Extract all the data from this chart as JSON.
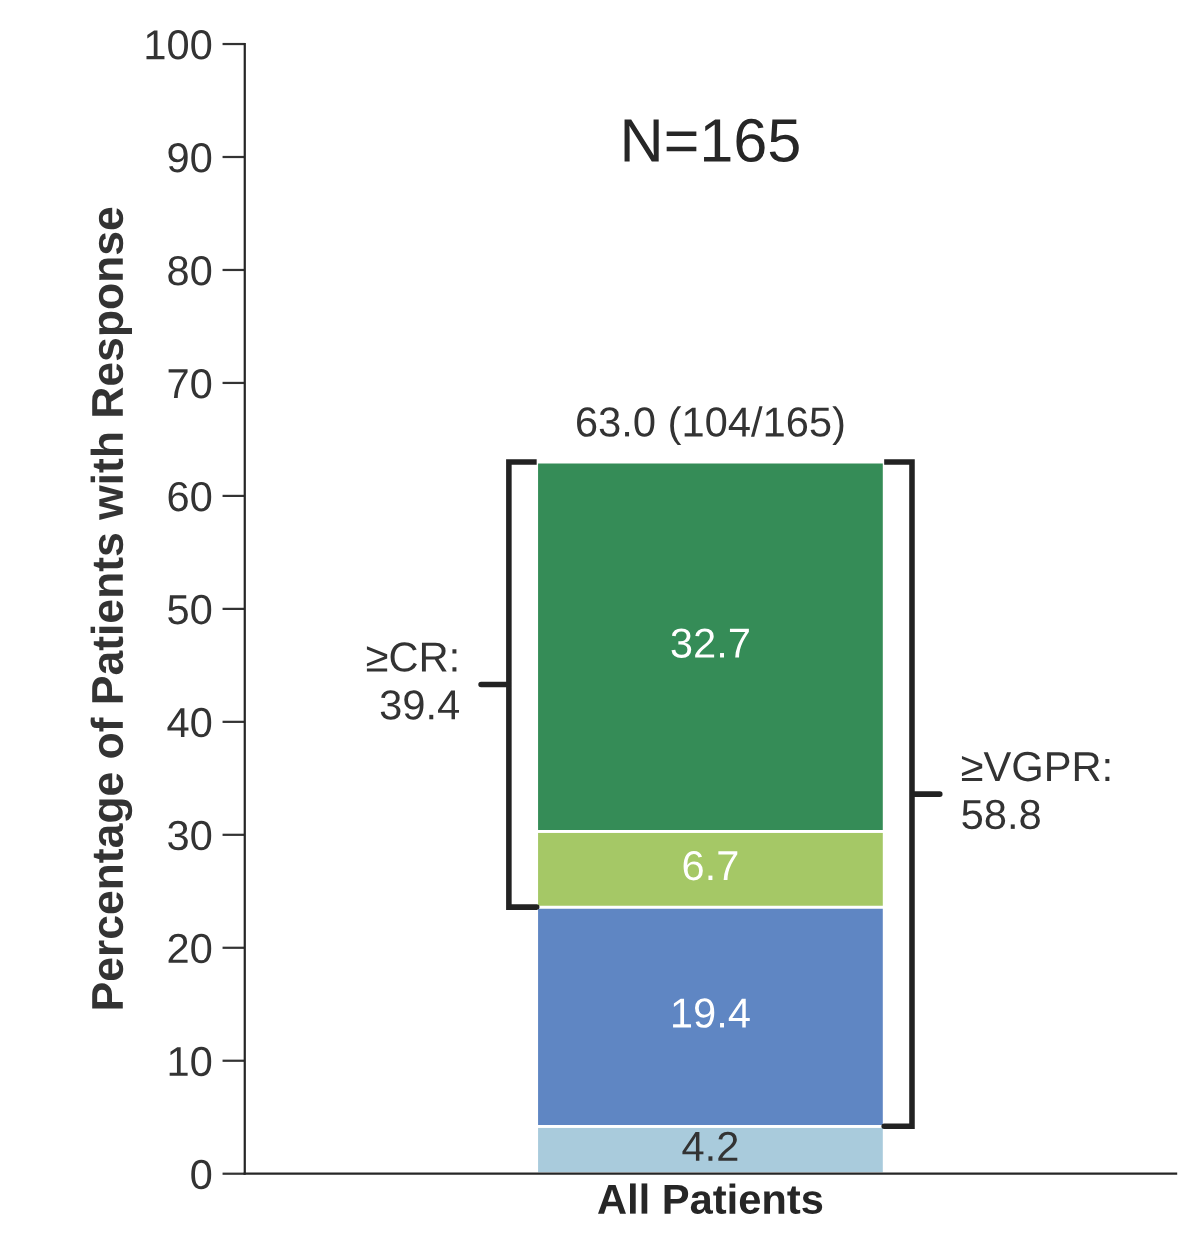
{
  "chart_data": {
    "type": "bar",
    "stacked": true,
    "ylabel": "Percentage of Patients with Response",
    "categories": [
      "All Patients"
    ],
    "series": [
      {
        "color": "#a9cbdc",
        "values": [
          4.2
        ]
      },
      {
        "color": "#5f86c3",
        "values": [
          19.4
        ]
      },
      {
        "color": "#a5c866",
        "values": [
          6.7
        ]
      },
      {
        "color": "#358c57",
        "values": [
          32.7
        ]
      }
    ],
    "data_labels": true,
    "totals": [
      "63.0 (104/165)"
    ],
    "ylim": [
      0,
      100
    ],
    "yticks": [
      0,
      10,
      20,
      30,
      40,
      50,
      60,
      70,
      80,
      90,
      100
    ],
    "grid": false,
    "legend": false,
    "annotations": [
      "N=165",
      "≥CR:\n39.4",
      "≥VGPR:\n58.8"
    ]
  }
}
